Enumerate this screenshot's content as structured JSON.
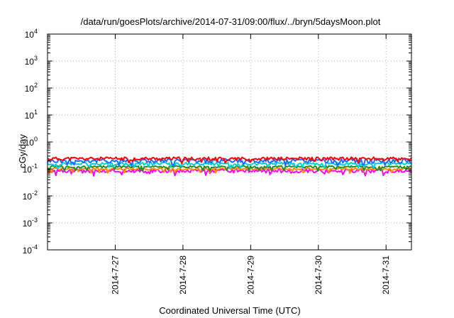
{
  "chart_data": {
    "type": "line",
    "title": "/data/run/goesPlots/archive/2014-07-31/09:00/flux/../bryn/5daysMoon.plot",
    "xlabel": "Coordinated Universal Time (UTC)",
    "ylabel": "cGy/day",
    "yscale": "log",
    "ylim": [
      0.0001,
      10000
    ],
    "y_ticks": [
      {
        "value": 0.0001,
        "base": "10",
        "exp": "-4"
      },
      {
        "value": 0.001,
        "base": "10",
        "exp": "-3"
      },
      {
        "value": 0.01,
        "base": "10",
        "exp": "-2"
      },
      {
        "value": 0.1,
        "base": "10",
        "exp": "-1"
      },
      {
        "value": 1,
        "base": "10",
        "exp": "0"
      },
      {
        "value": 10,
        "base": "10",
        "exp": "1"
      },
      {
        "value": 100,
        "base": "10",
        "exp": "2"
      },
      {
        "value": 1000,
        "base": "10",
        "exp": "3"
      },
      {
        "value": 10000,
        "base": "10",
        "exp": "4"
      }
    ],
    "xlim": [
      "2014-07-26T00:00",
      "2014-07-31T09:00"
    ],
    "x_ticks": [
      {
        "value": "2014-07-27T00:00",
        "label": "2014-7-27"
      },
      {
        "value": "2014-07-28T00:00",
        "label": "2014-7-28"
      },
      {
        "value": "2014-07-29T00:00",
        "label": "2014-7-29"
      },
      {
        "value": "2014-07-30T00:00",
        "label": "2014-7-30"
      },
      {
        "value": "2014-07-31T00:00",
        "label": "2014-7-31"
      }
    ],
    "grid": true,
    "series": [
      {
        "color": "#ff0000",
        "typical": 0.24,
        "spread": 0.12
      },
      {
        "color": "#1e6cff",
        "typical": 0.2,
        "spread": 0.17
      },
      {
        "color": "#00d0d0",
        "typical": 0.155,
        "spread": 0.1
      },
      {
        "color": "#2a8a2a",
        "typical": 0.12,
        "spread": 0.08
      },
      {
        "color": "#ff8c00",
        "typical": 0.1,
        "spread": 0.08
      },
      {
        "color": "#ff00ff",
        "typical": 0.085,
        "spread": 0.14
      }
    ]
  }
}
